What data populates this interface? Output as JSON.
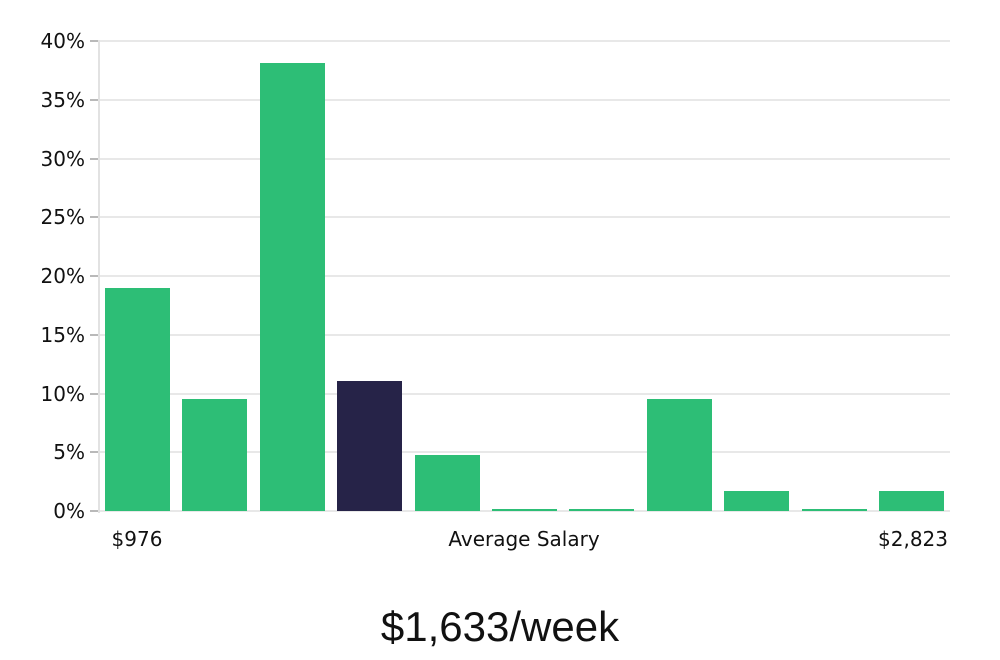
{
  "chart_data": {
    "type": "bar",
    "title": "$1,633/week",
    "categories": [
      "bin-1",
      "bin-2",
      "bin-3",
      "bin-4",
      "bin-5",
      "bin-6",
      "bin-7",
      "bin-8",
      "bin-9",
      "bin-10",
      "bin-11"
    ],
    "values": [
      19,
      9.5,
      38.1,
      11.1,
      4.8,
      0.2,
      0.2,
      9.5,
      1.7,
      0.2,
      1.7
    ],
    "unit": "%",
    "highlight_index": 3,
    "bar_color": "#2DBE76",
    "highlight_color": "#262348",
    "ylim": [
      0,
      40
    ],
    "y_ticks": [
      0,
      5,
      10,
      15,
      20,
      25,
      30,
      35,
      40
    ],
    "y_tick_suffix": "%",
    "x_tick_labels": {
      "left": "$976",
      "center": "Average Salary",
      "right": "$2,823"
    },
    "grid": true,
    "gridline_color": "#e8e8e8",
    "legend": "none",
    "background": "#ffffff"
  }
}
